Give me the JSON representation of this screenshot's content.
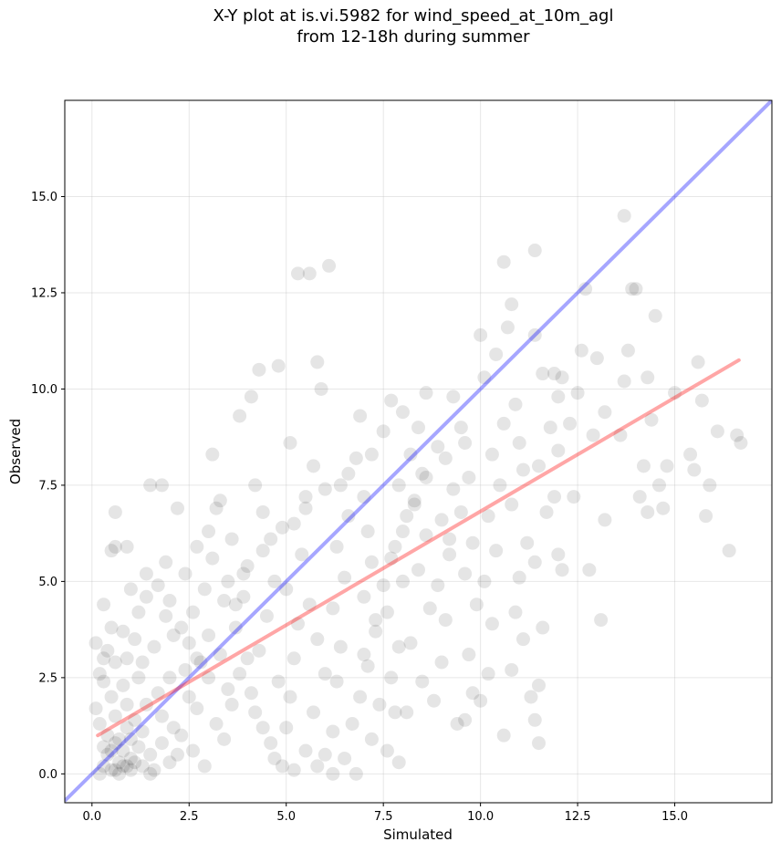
{
  "chart_data": {
    "type": "scatter",
    "title_line1": "X-Y plot at is.vi.5982 for wind_speed_at_10m_agl",
    "title_line2": "from 12-18h during summer",
    "xlabel": "Simulated",
    "ylabel": "Observed",
    "xlim": [
      -0.7,
      17.5
    ],
    "ylim": [
      -0.75,
      17.5
    ],
    "x_ticks": [
      0.0,
      2.5,
      5.0,
      7.5,
      10.0,
      12.5,
      15.0
    ],
    "y_ticks": [
      0.0,
      2.5,
      5.0,
      7.5,
      10.0,
      12.5,
      15.0
    ],
    "x_tick_labels": [
      "0.0",
      "2.5",
      "5.0",
      "7.5",
      "10.0",
      "12.5",
      "15.0"
    ],
    "y_tick_labels": [
      "0.0",
      "2.5",
      "5.0",
      "7.5",
      "10.0",
      "12.5",
      "15.0"
    ],
    "grid": true,
    "point_color": "#000000",
    "identity_line": {
      "x": [
        -0.7,
        17.5
      ],
      "y": [
        -0.7,
        17.5
      ],
      "color": "#0000ff"
    },
    "fit_line": {
      "x": [
        0.15,
        16.65
      ],
      "y": [
        1.0,
        10.75
      ],
      "color": "#ff0000"
    },
    "points": [
      [
        0.3,
        0.2
      ],
      [
        0.4,
        0.5
      ],
      [
        0.5,
        0.1
      ],
      [
        0.6,
        0.8
      ],
      [
        0.7,
        0.3
      ],
      [
        0.8,
        0.6
      ],
      [
        0.9,
        0.2
      ],
      [
        1.0,
        0.4
      ],
      [
        0.5,
        0.6
      ],
      [
        0.6,
        0.1
      ],
      [
        0.7,
        0.9
      ],
      [
        0.8,
        0.2
      ],
      [
        0.9,
        1.2
      ],
      [
        1.1,
        0.3
      ],
      [
        1.2,
        0.7
      ],
      [
        0.4,
        1.0
      ],
      [
        0.3,
        0.7
      ],
      [
        1.3,
        0.2
      ],
      [
        1.0,
        0.9
      ],
      [
        1.1,
        1.4
      ],
      [
        0.6,
        1.5
      ],
      [
        0.2,
        1.3
      ],
      [
        0.5,
        2.0
      ],
      [
        0.9,
        1.8
      ],
      [
        1.3,
        1.1
      ],
      [
        1.5,
        0.5
      ],
      [
        1.6,
        0.1
      ],
      [
        1.4,
        1.8
      ],
      [
        0.8,
        2.3
      ],
      [
        0.3,
        2.4
      ],
      [
        1.2,
        2.5
      ],
      [
        1.7,
        2.1
      ],
      [
        1.8,
        0.8
      ],
      [
        2.0,
        0.3
      ],
      [
        2.1,
        1.2
      ],
      [
        0.2,
        0.0
      ],
      [
        0.7,
        0.0
      ],
      [
        1.0,
        0.1
      ],
      [
        1.5,
        0.0
      ],
      [
        2.2,
        0.5
      ],
      [
        0.4,
        3.2
      ],
      [
        0.6,
        2.9
      ],
      [
        0.9,
        3.0
      ],
      [
        1.1,
        3.5
      ],
      [
        1.3,
        2.9
      ],
      [
        1.6,
        3.3
      ],
      [
        0.5,
        3.8
      ],
      [
        0.8,
        3.7
      ],
      [
        1.2,
        4.2
      ],
      [
        0.3,
        4.4
      ],
      [
        0.6,
        5.9
      ],
      [
        0.6,
        6.8
      ],
      [
        0.9,
        5.9
      ],
      [
        0.5,
        5.8
      ],
      [
        1.8,
        7.5
      ],
      [
        1.5,
        7.5
      ],
      [
        1.0,
        4.8
      ],
      [
        1.4,
        5.2
      ],
      [
        1.9,
        5.5
      ],
      [
        2.2,
        6.9
      ],
      [
        2.0,
        4.5
      ],
      [
        2.3,
        3.8
      ],
      [
        2.5,
        3.4
      ],
      [
        2.6,
        4.2
      ],
      [
        2.4,
        2.7
      ],
      [
        2.7,
        1.7
      ],
      [
        2.8,
        2.9
      ],
      [
        3.0,
        3.6
      ],
      [
        2.9,
        4.8
      ],
      [
        3.1,
        5.6
      ],
      [
        3.3,
        3.1
      ],
      [
        3.5,
        2.2
      ],
      [
        3.2,
        1.3
      ],
      [
        2.6,
        0.6
      ],
      [
        2.9,
        0.2
      ],
      [
        3.4,
        0.9
      ],
      [
        3.6,
        1.8
      ],
      [
        3.8,
        2.6
      ],
      [
        3.7,
        3.8
      ],
      [
        3.9,
        4.6
      ],
      [
        4.0,
        5.4
      ],
      [
        3.6,
        6.1
      ],
      [
        3.3,
        7.1
      ],
      [
        3.1,
        8.3
      ],
      [
        4.2,
        7.5
      ],
      [
        4.3,
        10.5
      ],
      [
        4.1,
        9.8
      ],
      [
        3.8,
        9.3
      ],
      [
        4.4,
        6.8
      ],
      [
        4.6,
        6.1
      ],
      [
        4.7,
        5.0
      ],
      [
        4.5,
        4.1
      ],
      [
        4.3,
        3.2
      ],
      [
        4.8,
        2.4
      ],
      [
        4.2,
        1.6
      ],
      [
        4.6,
        0.8
      ],
      [
        4.9,
        0.2
      ],
      [
        5.0,
        1.2
      ],
      [
        5.1,
        2.0
      ],
      [
        5.2,
        3.0
      ],
      [
        5.3,
        3.9
      ],
      [
        5.0,
        4.8
      ],
      [
        5.4,
        5.7
      ],
      [
        5.2,
        6.5
      ],
      [
        5.5,
        7.2
      ],
      [
        5.7,
        8.0
      ],
      [
        5.1,
        8.6
      ],
      [
        4.8,
        10.6
      ],
      [
        5.3,
        13.0
      ],
      [
        5.6,
        13.0
      ],
      [
        6.1,
        13.2
      ],
      [
        5.8,
        10.7
      ],
      [
        5.9,
        10.0
      ],
      [
        5.6,
        4.4
      ],
      [
        5.8,
        3.5
      ],
      [
        6.0,
        2.6
      ],
      [
        5.7,
        1.6
      ],
      [
        6.0,
        0.5
      ],
      [
        6.2,
        1.1
      ],
      [
        6.3,
        2.4
      ],
      [
        6.4,
        3.3
      ],
      [
        6.2,
        4.3
      ],
      [
        6.5,
        5.1
      ],
      [
        6.3,
        5.9
      ],
      [
        6.6,
        6.7
      ],
      [
        6.4,
        7.5
      ],
      [
        6.8,
        8.2
      ],
      [
        6.9,
        9.3
      ],
      [
        7.0,
        7.2
      ],
      [
        7.1,
        6.3
      ],
      [
        7.2,
        5.5
      ],
      [
        7.0,
        4.6
      ],
      [
        7.3,
        3.7
      ],
      [
        7.1,
        2.8
      ],
      [
        7.4,
        1.8
      ],
      [
        7.2,
        0.9
      ],
      [
        6.8,
        0.0
      ],
      [
        7.6,
        0.6
      ],
      [
        7.8,
        1.6
      ],
      [
        7.7,
        2.5
      ],
      [
        7.9,
        3.3
      ],
      [
        7.6,
        4.2
      ],
      [
        8.0,
        5.0
      ],
      [
        7.8,
        5.9
      ],
      [
        8.1,
        6.7
      ],
      [
        7.9,
        7.5
      ],
      [
        8.2,
        8.3
      ],
      [
        7.7,
        9.7
      ],
      [
        8.4,
        9.0
      ],
      [
        8.5,
        7.8
      ],
      [
        8.3,
        7.0
      ],
      [
        8.6,
        6.2
      ],
      [
        8.4,
        5.3
      ],
      [
        8.7,
        4.3
      ],
      [
        8.2,
        3.4
      ],
      [
        8.5,
        2.4
      ],
      [
        8.1,
        1.6
      ],
      [
        7.9,
        0.3
      ],
      [
        8.8,
        1.9
      ],
      [
        9.0,
        2.9
      ],
      [
        9.1,
        4.0
      ],
      [
        8.9,
        4.9
      ],
      [
        9.2,
        5.7
      ],
      [
        9.0,
        6.6
      ],
      [
        9.3,
        7.4
      ],
      [
        9.1,
        8.2
      ],
      [
        9.5,
        9.0
      ],
      [
        9.3,
        9.8
      ],
      [
        9.6,
        8.6
      ],
      [
        9.7,
        7.7
      ],
      [
        9.5,
        6.8
      ],
      [
        9.8,
        6.0
      ],
      [
        9.6,
        5.2
      ],
      [
        9.9,
        4.4
      ],
      [
        9.7,
        3.1
      ],
      [
        9.8,
        2.1
      ],
      [
        9.4,
        1.3
      ],
      [
        9.6,
        1.4
      ],
      [
        10.0,
        1.9
      ],
      [
        10.2,
        2.6
      ],
      [
        10.3,
        3.9
      ],
      [
        10.1,
        5.0
      ],
      [
        10.4,
        5.8
      ],
      [
        10.2,
        6.7
      ],
      [
        10.5,
        7.5
      ],
      [
        10.3,
        8.3
      ],
      [
        10.6,
        9.1
      ],
      [
        10.1,
        10.3
      ],
      [
        10.4,
        10.9
      ],
      [
        10.0,
        11.4
      ],
      [
        10.7,
        11.6
      ],
      [
        10.8,
        12.2
      ],
      [
        10.6,
        13.3
      ],
      [
        10.9,
        9.6
      ],
      [
        11.0,
        8.6
      ],
      [
        11.1,
        7.9
      ],
      [
        10.8,
        7.0
      ],
      [
        11.2,
        6.0
      ],
      [
        11.0,
        5.1
      ],
      [
        10.9,
        4.2
      ],
      [
        11.1,
        3.5
      ],
      [
        10.8,
        2.7
      ],
      [
        11.3,
        2.0
      ],
      [
        10.6,
        1.0
      ],
      [
        11.4,
        1.4
      ],
      [
        11.5,
        2.3
      ],
      [
        11.6,
        3.8
      ],
      [
        11.4,
        5.5
      ],
      [
        11.7,
        6.8
      ],
      [
        11.5,
        8.0
      ],
      [
        11.8,
        9.0
      ],
      [
        11.6,
        10.4
      ],
      [
        11.4,
        11.4
      ],
      [
        11.4,
        13.6
      ],
      [
        11.5,
        0.8
      ],
      [
        11.9,
        10.4
      ],
      [
        12.0,
        9.8
      ],
      [
        12.1,
        10.3
      ],
      [
        12.3,
        9.1
      ],
      [
        12.0,
        8.4
      ],
      [
        11.9,
        7.2
      ],
      [
        12.0,
        5.7
      ],
      [
        12.1,
        5.3
      ],
      [
        12.4,
        7.2
      ],
      [
        12.5,
        9.9
      ],
      [
        12.6,
        11.0
      ],
      [
        12.7,
        12.6
      ],
      [
        12.8,
        5.3
      ],
      [
        12.9,
        8.8
      ],
      [
        13.0,
        10.8
      ],
      [
        13.1,
        4.0
      ],
      [
        13.2,
        6.6
      ],
      [
        13.2,
        9.4
      ],
      [
        13.6,
        8.8
      ],
      [
        13.7,
        10.2
      ],
      [
        13.8,
        11.0
      ],
      [
        13.9,
        12.6
      ],
      [
        13.7,
        14.5
      ],
      [
        14.0,
        12.6
      ],
      [
        14.1,
        7.2
      ],
      [
        14.2,
        8.0
      ],
      [
        14.3,
        10.3
      ],
      [
        14.5,
        11.9
      ],
      [
        14.3,
        6.8
      ],
      [
        14.4,
        9.2
      ],
      [
        14.6,
        7.5
      ],
      [
        14.7,
        6.9
      ],
      [
        14.8,
        8.0
      ],
      [
        15.0,
        9.9
      ],
      [
        15.4,
        8.3
      ],
      [
        15.5,
        7.9
      ],
      [
        15.6,
        10.7
      ],
      [
        15.7,
        9.7
      ],
      [
        15.8,
        6.7
      ],
      [
        15.9,
        7.5
      ],
      [
        16.1,
        8.9
      ],
      [
        16.4,
        5.8
      ],
      [
        16.6,
        8.8
      ],
      [
        16.7,
        8.6
      ],
      [
        2.0,
        2.5
      ],
      [
        2.5,
        2.0
      ],
      [
        3.0,
        2.5
      ],
      [
        1.8,
        1.5
      ],
      [
        2.3,
        1.0
      ],
      [
        2.7,
        3.0
      ],
      [
        3.4,
        4.5
      ],
      [
        3.9,
        5.2
      ],
      [
        4.4,
        5.8
      ],
      [
        4.9,
        6.4
      ],
      [
        5.5,
        6.9
      ],
      [
        6.0,
        7.4
      ],
      [
        6.6,
        7.8
      ],
      [
        7.2,
        8.3
      ],
      [
        7.5,
        8.9
      ],
      [
        8.0,
        9.4
      ],
      [
        8.6,
        9.9
      ],
      [
        0.1,
        1.7
      ],
      [
        0.2,
        2.6
      ],
      [
        0.1,
        3.4
      ],
      [
        0.3,
        3.0
      ],
      [
        1.4,
        4.6
      ],
      [
        1.7,
        4.9
      ],
      [
        1.9,
        4.1
      ],
      [
        2.1,
        3.6
      ],
      [
        2.4,
        5.2
      ],
      [
        2.7,
        5.9
      ],
      [
        3.0,
        6.3
      ],
      [
        3.2,
        6.9
      ],
      [
        3.5,
        5.0
      ],
      [
        3.7,
        4.4
      ],
      [
        4.0,
        3.0
      ],
      [
        4.1,
        2.1
      ],
      [
        4.4,
        1.2
      ],
      [
        4.7,
        0.4
      ],
      [
        5.2,
        0.1
      ],
      [
        5.5,
        0.6
      ],
      [
        5.8,
        0.2
      ],
      [
        6.2,
        0.0
      ],
      [
        6.5,
        0.4
      ],
      [
        6.7,
        1.3
      ],
      [
        6.9,
        2.0
      ],
      [
        7.0,
        3.1
      ],
      [
        7.3,
        4.0
      ],
      [
        7.5,
        4.9
      ],
      [
        7.7,
        5.6
      ],
      [
        8.0,
        6.3
      ],
      [
        8.3,
        7.1
      ],
      [
        8.6,
        7.7
      ],
      [
        8.9,
        8.5
      ],
      [
        9.2,
        6.1
      ]
    ]
  }
}
